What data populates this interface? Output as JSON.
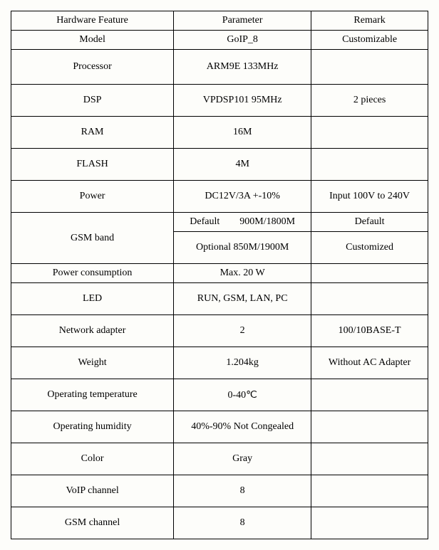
{
  "table": {
    "background_color": "#fdfdfa",
    "border_color": "#000000",
    "font_family": "Times New Roman",
    "font_size_pt": 11,
    "text_color": "#000000",
    "columns": [
      "Hardware Feature",
      "Parameter",
      "Remark"
    ],
    "col_widths_pct": [
      39,
      33,
      28
    ],
    "rows": [
      {
        "h": "short",
        "cells": [
          "Hardware Feature",
          "Parameter",
          "Remark"
        ]
      },
      {
        "h": "short",
        "cells": [
          "Model",
          "GoIP_8",
          "Customizable"
        ]
      },
      {
        "h": "tall",
        "cells": [
          "Processor",
          "ARM9E 133MHz",
          ""
        ]
      },
      {
        "h": "tall2",
        "cells": [
          "DSP",
          "VPDSP101 95MHz",
          "2 pieces"
        ]
      },
      {
        "h": "tall2",
        "cells": [
          "RAM",
          "16M",
          ""
        ]
      },
      {
        "h": "tall2",
        "cells": [
          "FLASH",
          "4M",
          ""
        ]
      },
      {
        "h": "tall2",
        "cells": [
          "Power",
          "DC12V/3A +-10%",
          "Input 100V to 240V"
        ]
      },
      {
        "h": "short",
        "cells": [
          "GSM band",
          "Default  900M/1800M",
          "Default"
        ],
        "rowspan0": 2
      },
      {
        "h": "tall2",
        "cells": [
          "Optional 850M/1900M",
          "Customized"
        ]
      },
      {
        "h": "short",
        "cells": [
          "Power consumption",
          "Max. 20 W",
          ""
        ]
      },
      {
        "h": "tall2",
        "cells": [
          "LED",
          "RUN, GSM, LAN, PC",
          ""
        ]
      },
      {
        "h": "tall2",
        "cells": [
          "Network adapter",
          "2",
          "100/10BASE-T"
        ]
      },
      {
        "h": "tall2",
        "cells": [
          "Weight",
          "1.204kg",
          "Without AC Adapter"
        ]
      },
      {
        "h": "tall2",
        "cells": [
          "Operating temperature",
          "0-40℃",
          ""
        ]
      },
      {
        "h": "tall2",
        "cells": [
          "Operating humidity",
          "40%-90% Not Congealed",
          ""
        ]
      },
      {
        "h": "tall2",
        "cells": [
          "Color",
          "Gray",
          ""
        ]
      },
      {
        "h": "tall2",
        "cells": [
          "VoIP channel",
          "8",
          ""
        ]
      },
      {
        "h": "tall2",
        "cells": [
          "GSM channel",
          "8",
          ""
        ]
      }
    ]
  }
}
